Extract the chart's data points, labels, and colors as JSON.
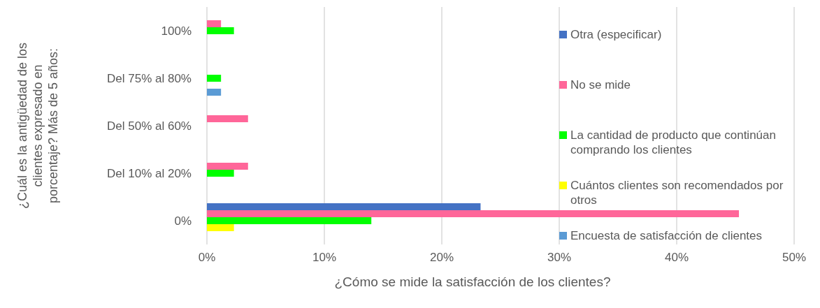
{
  "chart_data": {
    "type": "bar",
    "orientation": "horizontal",
    "xlabel": "¿Cómo se mide la satisfacción de los clientes?",
    "ylabel": "¿Cuál es la antigüedad de los clientes expresado en porcentaje? Más de 5 años:",
    "categories": [
      "100%",
      "Del 75% al 80%",
      "Del 50% al 60%",
      "Del 10% al 20%",
      "0%"
    ],
    "series": [
      {
        "name": "Otra (especificar)",
        "color": "#4472c4",
        "values": [
          null,
          null,
          null,
          null,
          23.3
        ]
      },
      {
        "name": "No se mide",
        "color": "#ff6699",
        "values": [
          1.2,
          null,
          3.5,
          3.5,
          45.3
        ]
      },
      {
        "name": "La cantidad de producto que continúan comprando los clientes",
        "color": "#00ff00",
        "values": [
          2.3,
          1.2,
          null,
          2.3,
          14.0
        ]
      },
      {
        "name": "Cuántos clientes son recomendados por otros",
        "color": "#ffff00",
        "values": [
          null,
          null,
          null,
          null,
          2.3
        ]
      },
      {
        "name": "Encuesta de satisfacción de clientes",
        "color": "#5b9bd5",
        "values": [
          null,
          1.2,
          null,
          null,
          null
        ]
      }
    ],
    "xlim": [
      0,
      50
    ],
    "xticks": [
      {
        "value": 0,
        "label": "0%"
      },
      {
        "value": 10,
        "label": "10%"
      },
      {
        "value": 20,
        "label": "20%"
      },
      {
        "value": 30,
        "label": "30%"
      },
      {
        "value": 40,
        "label": "40%"
      },
      {
        "value": 50,
        "label": "50%"
      }
    ],
    "grid": "x",
    "legend": "right"
  }
}
